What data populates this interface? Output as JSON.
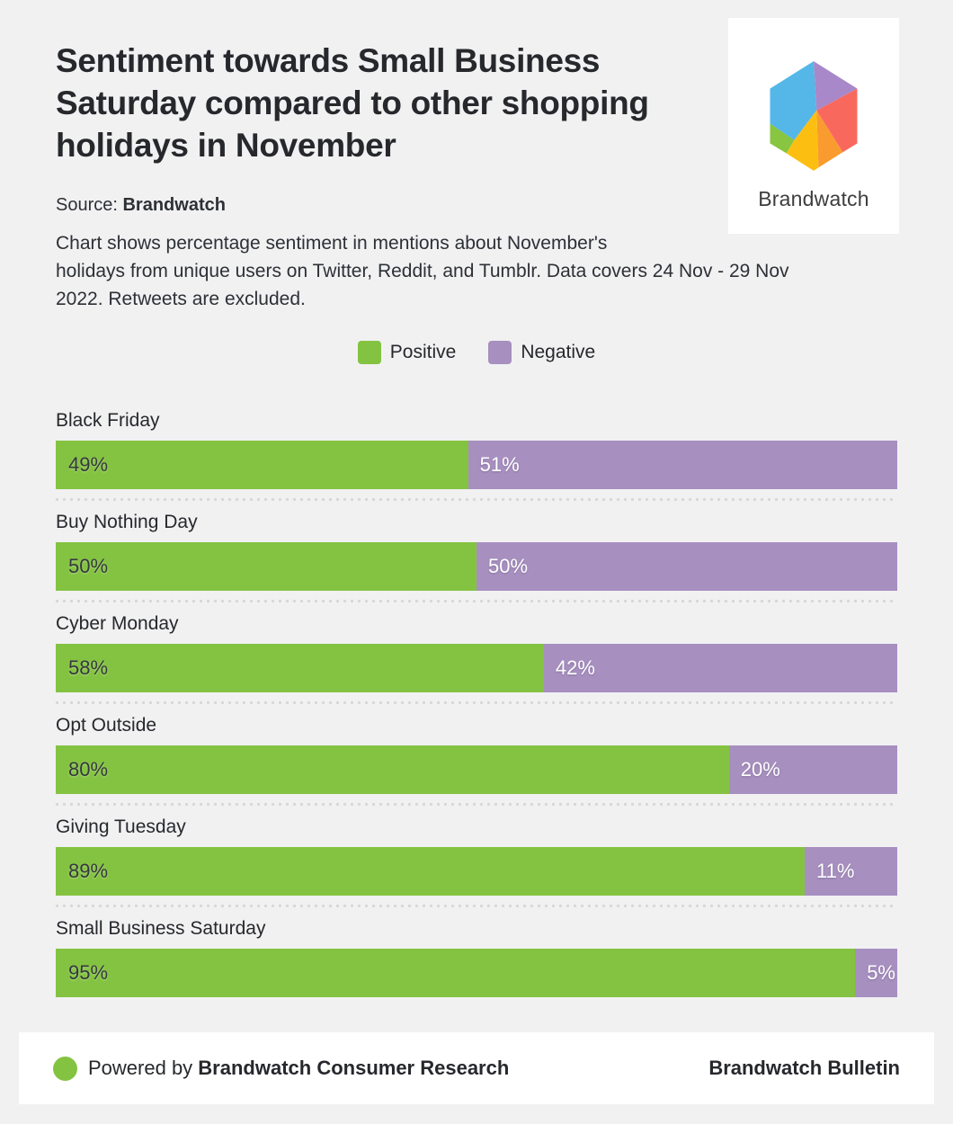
{
  "page": {
    "background": "#f1f1f2"
  },
  "header": {
    "title": "Sentiment towards Small Business\nSaturday compared to other shopping\nholidays in November",
    "source_label": "Source: ",
    "source_value": "Brandwatch",
    "description": "Chart shows percentage sentiment in mentions about November's\nholidays from unique users on Twitter, Reddit, and Tumblr. Data covers 24 Nov - 29 Nov\n2022. Retweets are excluded."
  },
  "logo": {
    "wordmark": "Brandwatch",
    "colors": {
      "blue": "#55b7e8",
      "purple": "#a888c9",
      "red": "#f9685d",
      "orange": "#f99b2e",
      "yellow": "#fcbf11",
      "green": "#88c540"
    }
  },
  "chart_data": {
    "type": "bar",
    "orientation": "horizontal-stacked",
    "title": "Sentiment towards Small Business Saturday compared to other shopping holidays in November",
    "categories": [
      "Black Friday",
      "Buy Nothing Day",
      "Cyber Monday",
      "Opt Outside",
      "Giving Tuesday",
      "Small Business Saturday"
    ],
    "series": [
      {
        "name": "Positive",
        "color": "#84c341",
        "values": [
          49,
          50,
          58,
          80,
          89,
          95
        ]
      },
      {
        "name": "Negative",
        "color": "#a78fc0",
        "values": [
          51,
          50,
          42,
          20,
          11,
          5
        ]
      }
    ],
    "value_suffix": "%",
    "xlim": [
      0,
      100
    ],
    "grid": false,
    "legend_position": "top-center",
    "value_labels": "inside-left"
  },
  "footer": {
    "dot_color": "#84c341",
    "powered_by_prefix": "Powered by ",
    "powered_by_brand": "Brandwatch Consumer Research",
    "right_text": "Brandwatch Bulletin"
  }
}
